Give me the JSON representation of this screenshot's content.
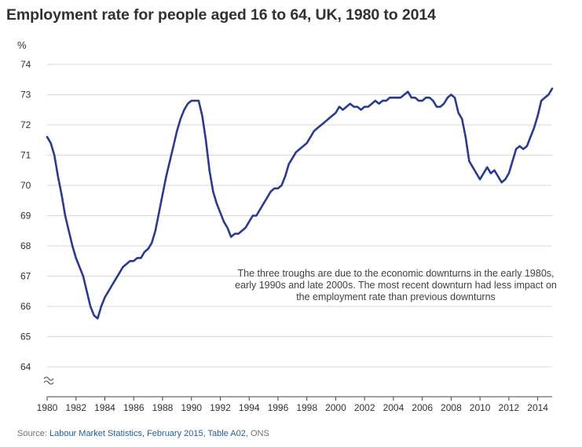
{
  "title": "Employment rate for people aged 16 to 64, UK, 1980 to 2014",
  "unit_label": "%",
  "annotation": "The three troughs are due to the economic downturns in the early 1980s, early 1990s and late 2000s. The most recent downturn had less impact on the employment rate than previous downturns",
  "source": {
    "prefix": "Source: ",
    "link_text": "Labour Market Statistics, February 2015, Table A02",
    "suffix": ", ONS"
  },
  "colors": {
    "line": "#2a3b8f",
    "grid": "#d9d9d9",
    "text": "#323132",
    "link": "#206095"
  },
  "chart_data": {
    "type": "line",
    "title": "Employment rate for people aged 16 to 64, UK, 1980 to 2014",
    "xlabel": "",
    "ylabel": "%",
    "xlim": [
      1980,
      2015
    ],
    "ylim": [
      64,
      74
    ],
    "y_axis_break": true,
    "grid": "horizontal",
    "x_ticks": [
      "1980",
      "1982",
      "1984",
      "1986",
      "1988",
      "1990",
      "1992",
      "1994",
      "1996",
      "1998",
      "2000",
      "2002",
      "2004",
      "2006",
      "2008",
      "2010",
      "2012",
      "2014"
    ],
    "y_ticks": [
      "64",
      "65",
      "66",
      "67",
      "68",
      "69",
      "70",
      "71",
      "72",
      "73",
      "74"
    ],
    "series": [
      {
        "name": "",
        "points": [
          [
            1980.0,
            71.6
          ],
          [
            1980.25,
            71.4
          ],
          [
            1980.5,
            71.0
          ],
          [
            1980.75,
            70.3
          ],
          [
            1981.0,
            69.7
          ],
          [
            1981.25,
            69.0
          ],
          [
            1981.5,
            68.5
          ],
          [
            1981.75,
            68.0
          ],
          [
            1982.0,
            67.6
          ],
          [
            1982.25,
            67.3
          ],
          [
            1982.5,
            67.0
          ],
          [
            1982.75,
            66.5
          ],
          [
            1983.0,
            66.0
          ],
          [
            1983.25,
            65.7
          ],
          [
            1983.5,
            65.6
          ],
          [
            1983.75,
            66.0
          ],
          [
            1984.0,
            66.3
          ],
          [
            1984.25,
            66.5
          ],
          [
            1984.5,
            66.7
          ],
          [
            1984.75,
            66.9
          ],
          [
            1985.0,
            67.1
          ],
          [
            1985.25,
            67.3
          ],
          [
            1985.5,
            67.4
          ],
          [
            1985.75,
            67.5
          ],
          [
            1986.0,
            67.5
          ],
          [
            1986.25,
            67.6
          ],
          [
            1986.5,
            67.6
          ],
          [
            1986.75,
            67.8
          ],
          [
            1987.0,
            67.9
          ],
          [
            1987.25,
            68.1
          ],
          [
            1987.5,
            68.5
          ],
          [
            1987.75,
            69.1
          ],
          [
            1988.0,
            69.7
          ],
          [
            1988.25,
            70.3
          ],
          [
            1988.5,
            70.8
          ],
          [
            1988.75,
            71.3
          ],
          [
            1989.0,
            71.8
          ],
          [
            1989.25,
            72.2
          ],
          [
            1989.5,
            72.5
          ],
          [
            1989.75,
            72.7
          ],
          [
            1990.0,
            72.8
          ],
          [
            1990.25,
            72.8
          ],
          [
            1990.5,
            72.8
          ],
          [
            1990.75,
            72.3
          ],
          [
            1991.0,
            71.5
          ],
          [
            1991.25,
            70.5
          ],
          [
            1991.5,
            69.8
          ],
          [
            1991.75,
            69.4
          ],
          [
            1992.0,
            69.1
          ],
          [
            1992.25,
            68.8
          ],
          [
            1992.5,
            68.6
          ],
          [
            1992.75,
            68.3
          ],
          [
            1993.0,
            68.4
          ],
          [
            1993.25,
            68.4
          ],
          [
            1993.5,
            68.5
          ],
          [
            1993.75,
            68.6
          ],
          [
            1994.0,
            68.8
          ],
          [
            1994.25,
            69.0
          ],
          [
            1994.5,
            69.0
          ],
          [
            1994.75,
            69.2
          ],
          [
            1995.0,
            69.4
          ],
          [
            1995.25,
            69.6
          ],
          [
            1995.5,
            69.8
          ],
          [
            1995.75,
            69.9
          ],
          [
            1996.0,
            69.9
          ],
          [
            1996.25,
            70.0
          ],
          [
            1996.5,
            70.3
          ],
          [
            1996.75,
            70.7
          ],
          [
            1997.0,
            70.9
          ],
          [
            1997.25,
            71.1
          ],
          [
            1997.5,
            71.2
          ],
          [
            1997.75,
            71.3
          ],
          [
            1998.0,
            71.4
          ],
          [
            1998.25,
            71.6
          ],
          [
            1998.5,
            71.8
          ],
          [
            1998.75,
            71.9
          ],
          [
            1999.0,
            72.0
          ],
          [
            1999.25,
            72.1
          ],
          [
            1999.5,
            72.2
          ],
          [
            1999.75,
            72.3
          ],
          [
            2000.0,
            72.4
          ],
          [
            2000.25,
            72.6
          ],
          [
            2000.5,
            72.5
          ],
          [
            2000.75,
            72.6
          ],
          [
            2001.0,
            72.7
          ],
          [
            2001.25,
            72.6
          ],
          [
            2001.5,
            72.6
          ],
          [
            2001.75,
            72.5
          ],
          [
            2002.0,
            72.6
          ],
          [
            2002.25,
            72.6
          ],
          [
            2002.5,
            72.7
          ],
          [
            2002.75,
            72.8
          ],
          [
            2003.0,
            72.7
          ],
          [
            2003.25,
            72.8
          ],
          [
            2003.5,
            72.8
          ],
          [
            2003.75,
            72.9
          ],
          [
            2004.0,
            72.9
          ],
          [
            2004.25,
            72.9
          ],
          [
            2004.5,
            72.9
          ],
          [
            2004.75,
            73.0
          ],
          [
            2005.0,
            73.1
          ],
          [
            2005.25,
            72.9
          ],
          [
            2005.5,
            72.9
          ],
          [
            2005.75,
            72.8
          ],
          [
            2006.0,
            72.8
          ],
          [
            2006.25,
            72.9
          ],
          [
            2006.5,
            72.9
          ],
          [
            2006.75,
            72.8
          ],
          [
            2007.0,
            72.6
          ],
          [
            2007.25,
            72.6
          ],
          [
            2007.5,
            72.7
          ],
          [
            2007.75,
            72.9
          ],
          [
            2008.0,
            73.0
          ],
          [
            2008.25,
            72.9
          ],
          [
            2008.5,
            72.4
          ],
          [
            2008.75,
            72.2
          ],
          [
            2009.0,
            71.6
          ],
          [
            2009.25,
            70.8
          ],
          [
            2009.5,
            70.6
          ],
          [
            2009.75,
            70.4
          ],
          [
            2010.0,
            70.2
          ],
          [
            2010.25,
            70.4
          ],
          [
            2010.5,
            70.6
          ],
          [
            2010.75,
            70.4
          ],
          [
            2011.0,
            70.5
          ],
          [
            2011.25,
            70.3
          ],
          [
            2011.5,
            70.1
          ],
          [
            2011.75,
            70.2
          ],
          [
            2012.0,
            70.4
          ],
          [
            2012.25,
            70.8
          ],
          [
            2012.5,
            71.2
          ],
          [
            2012.75,
            71.3
          ],
          [
            2013.0,
            71.2
          ],
          [
            2013.25,
            71.3
          ],
          [
            2013.5,
            71.6
          ],
          [
            2013.75,
            71.9
          ],
          [
            2014.0,
            72.3
          ],
          [
            2014.25,
            72.8
          ],
          [
            2014.5,
            72.9
          ],
          [
            2014.75,
            73.0
          ],
          [
            2015.0,
            73.2
          ]
        ]
      }
    ]
  }
}
